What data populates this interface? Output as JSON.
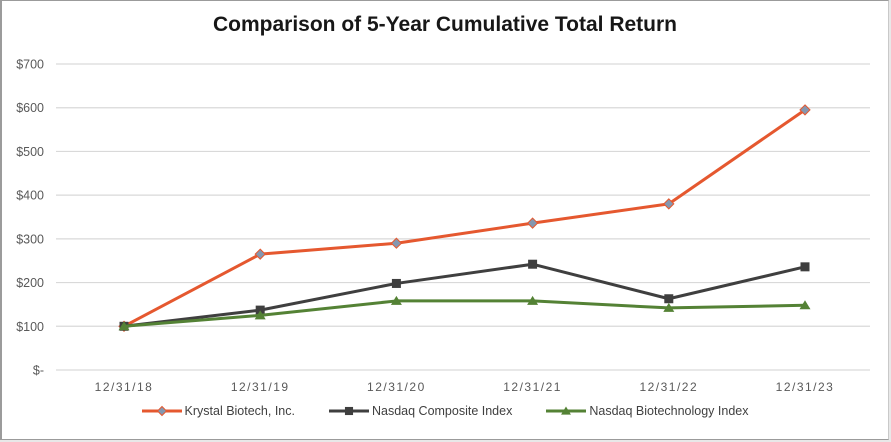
{
  "chart_data": {
    "type": "line",
    "title": "Comparison of 5-Year Cumulative Total Return",
    "categories": [
      "12/31/18",
      "12/31/19",
      "12/31/20",
      "12/31/21",
      "12/31/22",
      "12/31/23"
    ],
    "series": [
      {
        "name": "Krystal Biotech, Inc.",
        "marker": "diamond",
        "line_color": "#E5582F",
        "marker_fill": "#8497B0",
        "marker_stroke": "#E5582F",
        "values": [
          100,
          265,
          290,
          336,
          380,
          595
        ]
      },
      {
        "name": "Nasdaq Composite Index",
        "marker": "square",
        "line_color": "#3F3F3F",
        "marker_fill": "#3F3F3F",
        "marker_stroke": "#3F3F3F",
        "values": [
          100,
          137,
          198,
          242,
          163,
          236
        ]
      },
      {
        "name": "Nasdaq Biotechnology Index",
        "marker": "triangle",
        "line_color": "#548235",
        "marker_fill": "#548235",
        "marker_stroke": "#548235",
        "values": [
          100,
          125,
          158,
          158,
          142,
          148
        ]
      }
    ],
    "y_axis": {
      "ticks": [
        {
          "label": "$700",
          "value": 700
        },
        {
          "label": "$600",
          "value": 600
        },
        {
          "label": "$500",
          "value": 500
        },
        {
          "label": "$400",
          "value": 400
        },
        {
          "label": "$300",
          "value": 300
        },
        {
          "label": "$200",
          "value": 200
        },
        {
          "label": "$100",
          "value": 100
        },
        {
          "label": "$-",
          "value": 0
        }
      ],
      "range": [
        0,
        700
      ]
    },
    "grid": true,
    "legend_position": "bottom",
    "colors": {
      "gridline": "#D9D9D9",
      "axis_label": "#595959",
      "legend_text": "#404040",
      "title": "#171717",
      "background": "#FFFFFF"
    }
  }
}
